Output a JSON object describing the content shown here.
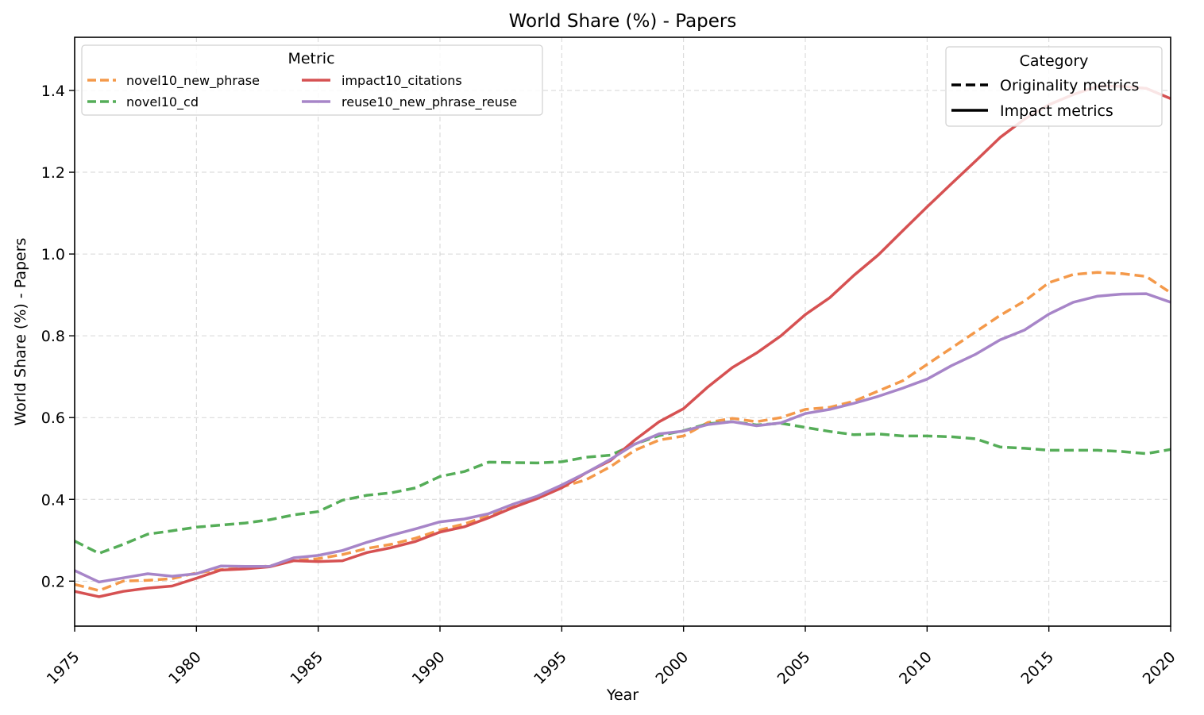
{
  "chart_data": {
    "type": "line",
    "title": "World Share (%) - Papers",
    "xlabel": "Year",
    "ylabel": "World Share (%) - Papers",
    "xlim": [
      1975,
      2020
    ],
    "ylim": [
      0.09,
      1.53
    ],
    "x_ticks": [
      1975,
      1980,
      1985,
      1990,
      1995,
      2000,
      2005,
      2010,
      2015,
      2020
    ],
    "y_ticks": [
      0.2,
      0.4,
      0.6,
      0.8,
      1.0,
      1.2,
      1.4
    ],
    "y_tick_labels": [
      "0.2",
      "0.4",
      "0.6",
      "0.8",
      "1.0",
      "1.2",
      "1.4"
    ],
    "grid": true,
    "x": [
      1975,
      1976,
      1977,
      1978,
      1979,
      1980,
      1981,
      1982,
      1983,
      1984,
      1985,
      1986,
      1987,
      1988,
      1989,
      1990,
      1991,
      1992,
      1993,
      1994,
      1995,
      1996,
      1997,
      1998,
      1999,
      2000,
      2001,
      2002,
      2003,
      2004,
      2005,
      2006,
      2007,
      2008,
      2009,
      2010,
      2011,
      2012,
      2013,
      2014,
      2015,
      2016,
      2017,
      2018,
      2019,
      2020
    ],
    "series": [
      {
        "name": "novel10_new_phrase",
        "category": "Originality metrics",
        "color": "#f4994a",
        "values": [
          0.192,
          0.177,
          0.2,
          0.202,
          0.206,
          0.22,
          0.228,
          0.233,
          0.237,
          0.25,
          0.255,
          0.265,
          0.28,
          0.29,
          0.305,
          0.325,
          0.34,
          0.36,
          0.385,
          0.405,
          0.43,
          0.448,
          0.48,
          0.52,
          0.545,
          0.555,
          0.588,
          0.598,
          0.59,
          0.6,
          0.62,
          0.625,
          0.64,
          0.665,
          0.69,
          0.73,
          0.77,
          0.81,
          0.85,
          0.885,
          0.93,
          0.95,
          0.955,
          0.952,
          0.945,
          0.905
        ]
      },
      {
        "name": "novel10_cd",
        "category": "Originality metrics",
        "color": "#55ad58",
        "values": [
          0.298,
          0.268,
          0.29,
          0.315,
          0.323,
          0.332,
          0.337,
          0.342,
          0.35,
          0.362,
          0.37,
          0.398,
          0.41,
          0.416,
          0.428,
          0.456,
          0.468,
          0.491,
          0.49,
          0.489,
          0.492,
          0.503,
          0.508,
          0.535,
          0.556,
          0.568,
          0.585,
          0.59,
          0.582,
          0.586,
          0.576,
          0.566,
          0.558,
          0.56,
          0.555,
          0.555,
          0.553,
          0.548,
          0.528,
          0.525,
          0.52,
          0.52,
          0.52,
          0.517,
          0.512,
          0.522
        ]
      },
      {
        "name": "impact10_citations",
        "category": "Impact metrics",
        "color": "#d65152",
        "values": [
          0.175,
          0.162,
          0.175,
          0.183,
          0.188,
          0.207,
          0.227,
          0.23,
          0.235,
          0.25,
          0.248,
          0.25,
          0.27,
          0.282,
          0.297,
          0.32,
          0.333,
          0.355,
          0.38,
          0.402,
          0.428,
          0.465,
          0.495,
          0.545,
          0.59,
          0.622,
          0.675,
          0.722,
          0.758,
          0.8,
          0.852,
          0.893,
          0.948,
          0.998,
          1.057,
          1.115,
          1.172,
          1.228,
          1.285,
          1.33,
          1.365,
          1.39,
          1.41,
          1.41,
          1.405,
          1.38
        ]
      },
      {
        "name": "reuse10_new_phrase_reuse",
        "category": "Impact metrics",
        "color": "#a785c8",
        "values": [
          0.226,
          0.198,
          0.208,
          0.218,
          0.212,
          0.218,
          0.237,
          0.236,
          0.236,
          0.257,
          0.263,
          0.275,
          0.295,
          0.312,
          0.328,
          0.345,
          0.352,
          0.365,
          0.388,
          0.408,
          0.435,
          0.465,
          0.498,
          0.535,
          0.56,
          0.567,
          0.583,
          0.59,
          0.58,
          0.587,
          0.61,
          0.62,
          0.635,
          0.652,
          0.672,
          0.694,
          0.727,
          0.755,
          0.79,
          0.814,
          0.853,
          0.882,
          0.897,
          0.902,
          0.903,
          0.882
        ]
      }
    ],
    "legend_metric": {
      "title": "Metric",
      "position": "top-left",
      "entries": [
        "novel10_new_phrase",
        "novel10_cd",
        "impact10_citations",
        "reuse10_new_phrase_reuse"
      ]
    },
    "legend_category": {
      "title": "Category",
      "position": "top-right",
      "entries": [
        {
          "label": "Originality metrics",
          "style": "dashed"
        },
        {
          "label": "Impact metrics",
          "style": "solid"
        }
      ]
    }
  }
}
